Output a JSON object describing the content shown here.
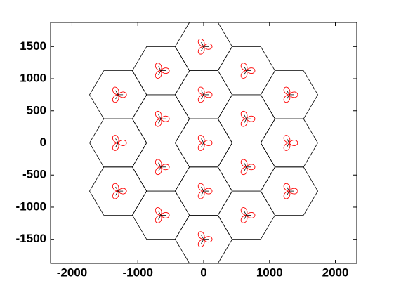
{
  "chart_data": {
    "type": "scatter",
    "x": [
      0,
      0,
      0,
      0,
      0,
      -650,
      -650,
      -650,
      -650,
      650,
      650,
      650,
      650,
      -1300,
      -1300,
      -1300,
      1300,
      1300,
      1300
    ],
    "y": [
      1500,
      750,
      0,
      -750,
      -1500,
      1125,
      375,
      -375,
      -1125,
      1125,
      375,
      -375,
      -1125,
      750,
      0,
      -750,
      750,
      0,
      -750
    ],
    "color": "#ff0000",
    "xlim": [
      -2325,
      2325
    ],
    "ylim": [
      -1875,
      1875
    ],
    "xticks": [
      -2000,
      -1000,
      0,
      1000,
      2000
    ],
    "yticks": [
      -1500,
      -1000,
      -500,
      0,
      500,
      1000,
      1500
    ],
    "grid": false
  }
}
